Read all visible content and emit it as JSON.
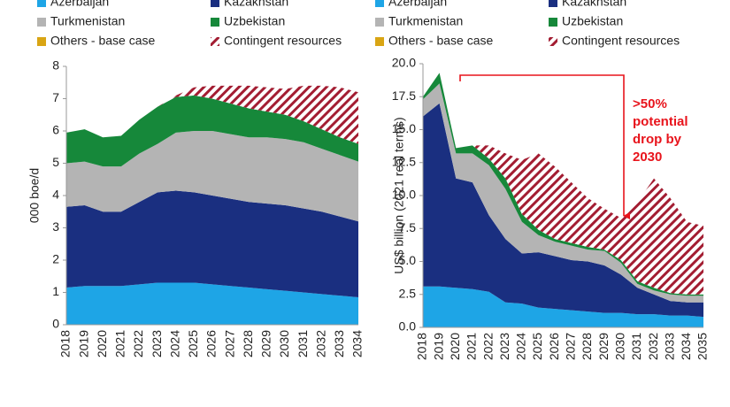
{
  "chart_data": [
    {
      "type": "stacked_area",
      "y_label": "000 boe/d",
      "categories": [
        "2018",
        "2019",
        "2020",
        "2021",
        "2022",
        "2023",
        "2024",
        "2025",
        "2026",
        "2027",
        "2028",
        "2029",
        "2030",
        "2031",
        "2032",
        "2033",
        "2034"
      ],
      "ylim": [
        0,
        8
      ],
      "yticks": [
        0,
        1,
        2,
        3,
        4,
        5,
        6,
        7,
        8
      ],
      "series": [
        {
          "name": "Azerbaijan",
          "color": "#1ea5e6",
          "values": [
            1.15,
            1.2,
            1.2,
            1.2,
            1.25,
            1.3,
            1.3,
            1.3,
            1.25,
            1.2,
            1.15,
            1.1,
            1.05,
            1.0,
            0.95,
            0.9,
            0.85
          ]
        },
        {
          "name": "Kazakhstan",
          "color": "#1a2f80",
          "values": [
            2.5,
            2.5,
            2.3,
            2.3,
            2.55,
            2.8,
            2.85,
            2.8,
            2.75,
            2.7,
            2.65,
            2.65,
            2.65,
            2.6,
            2.55,
            2.45,
            2.35
          ]
        },
        {
          "name": "Turkmenistan",
          "color": "#b4b4b4",
          "values": [
            1.35,
            1.35,
            1.4,
            1.4,
            1.5,
            1.5,
            1.8,
            1.9,
            2.0,
            2.0,
            2.0,
            2.05,
            2.05,
            2.05,
            1.95,
            1.9,
            1.85
          ]
        },
        {
          "name": "Uzbekistan",
          "color": "#16883a",
          "values": [
            0.95,
            1.0,
            0.9,
            0.95,
            1.05,
            1.15,
            1.1,
            1.1,
            1.0,
            0.95,
            0.9,
            0.8,
            0.75,
            0.65,
            0.6,
            0.55,
            0.55
          ]
        },
        {
          "name": "Others - base case",
          "color": "#d9a514",
          "values": [
            0,
            0,
            0,
            0,
            0,
            0,
            0,
            0,
            0,
            0,
            0,
            0,
            0,
            0,
            0,
            0,
            0
          ]
        },
        {
          "name": "Contingent resources",
          "color": "#a31d32",
          "pattern": "hatch",
          "values": [
            0,
            0,
            0,
            0,
            0,
            0,
            0.05,
            0.25,
            0.4,
            0.55,
            0.7,
            0.75,
            0.8,
            1.1,
            1.35,
            1.55,
            1.6
          ]
        }
      ]
    },
    {
      "type": "stacked_area",
      "y_label": "US$ billion (2021 real terms)",
      "categories": [
        "2018",
        "2019",
        "2020",
        "2021",
        "2022",
        "2023",
        "2024",
        "2025",
        "2026",
        "2027",
        "2028",
        "2029",
        "2030",
        "2031",
        "2032",
        "2033",
        "2034",
        "2035"
      ],
      "ylim": [
        0,
        20
      ],
      "yticks": [
        {
          "value": 0,
          "label": "0.0"
        },
        {
          "value": 2.5,
          "label": "2.5"
        },
        {
          "value": 5,
          "label": "5.0"
        },
        {
          "value": 7.5,
          "label": "7.5"
        },
        {
          "value": 10,
          "label": "10.0"
        },
        {
          "value": 12.5,
          "label": "12.5"
        },
        {
          "value": 15,
          "label": "15.0"
        },
        {
          "value": 17.5,
          "label": "17.5"
        },
        {
          "value": 20,
          "label": "20.0"
        }
      ],
      "annotation": [
        ">50%",
        "potential",
        "drop by",
        "2030"
      ],
      "series": [
        {
          "name": "Azerbaijan",
          "color": "#1ea5e6",
          "values": [
            3.1,
            3.1,
            3.0,
            2.9,
            2.7,
            1.9,
            1.8,
            1.5,
            1.4,
            1.3,
            1.2,
            1.1,
            1.1,
            1.0,
            1.0,
            0.9,
            0.9,
            0.8
          ]
        },
        {
          "name": "Kazakhstan",
          "color": "#1a2f80",
          "values": [
            12.9,
            13.9,
            8.3,
            8.1,
            5.8,
            4.8,
            3.8,
            4.2,
            4.0,
            3.8,
            3.8,
            3.6,
            2.9,
            2.0,
            1.5,
            1.1,
            1.0,
            1.1
          ]
        },
        {
          "name": "Turkmenistan",
          "color": "#b4b4b4",
          "values": [
            1.3,
            1.5,
            1.9,
            2.2,
            3.8,
            3.8,
            2.4,
            1.3,
            1.1,
            1.1,
            0.9,
            1.1,
            0.9,
            0.3,
            0.3,
            0.5,
            0.5,
            0.5
          ]
        },
        {
          "name": "Uzbekistan",
          "color": "#16883a",
          "values": [
            0.2,
            0.8,
            0.4,
            0.6,
            0.5,
            0.8,
            0.6,
            0.4,
            0.2,
            0.2,
            0.2,
            0.1,
            0.2,
            0.2,
            0.2,
            0.1,
            0.1,
            0.1
          ]
        },
        {
          "name": "Others - base case",
          "color": "#d9a514",
          "values": [
            0,
            0,
            0,
            0,
            0,
            0,
            0,
            0,
            0,
            0,
            0,
            0,
            0,
            0,
            0,
            0,
            0,
            0
          ]
        },
        {
          "name": "Contingent resources",
          "color": "#a31d32",
          "pattern": "hatch",
          "values": [
            0,
            0,
            0,
            0,
            1.0,
            1.9,
            4.1,
            5.8,
            5.5,
            4.6,
            3.7,
            3.1,
            3.2,
            6.0,
            8.3,
            7.2,
            5.5,
            5.2
          ]
        }
      ]
    }
  ]
}
